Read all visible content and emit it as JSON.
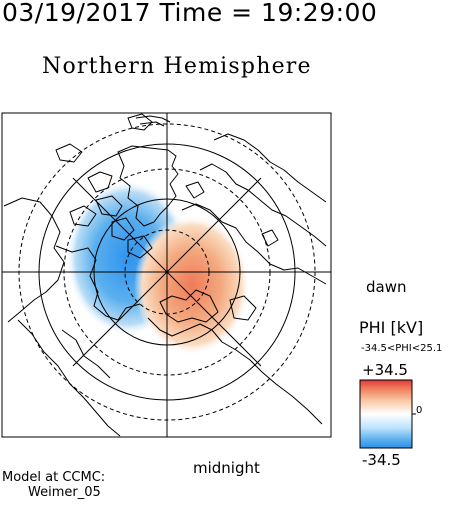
{
  "header": {
    "timestamp": "03/19/2017 Time = 19:29:00",
    "title": "Northern Hemisphere"
  },
  "map": {
    "hemisphere": "northern",
    "projection": "polar",
    "frame": "magnetic local time, noon up, midnight down, dawn right",
    "dawn_label": "dawn",
    "midnight_label": "midnight",
    "features": [
      "coastlines",
      "latitude-circles",
      "meridian-lines",
      "potential-contour-field"
    ],
    "colors": {
      "negative_cell": "#3a9bf0",
      "positive_cell": "#f08a62",
      "neutral": "#ffffff"
    }
  },
  "colorbar": {
    "quantity_label": "PHI [kV]",
    "range_label": "-34.5<PHI<25.1",
    "max_label": "+34.5",
    "min_label": "-34.5",
    "zero_label": "0",
    "max_value": 34.5,
    "min_value": -34.5,
    "data_min": -34.5,
    "data_max": 25.1,
    "colors": [
      "#3a9bf0",
      "#bfe4ff",
      "#ffffff",
      "#ffd6b8",
      "#e03a3a"
    ]
  },
  "credit": {
    "line1": "Model at CCMC:",
    "line2": "Weimer_05"
  }
}
